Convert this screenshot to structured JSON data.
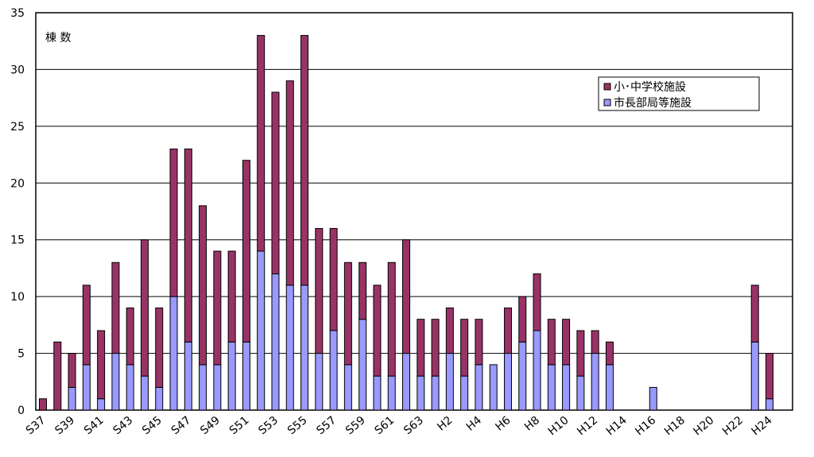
{
  "chart_data": {
    "type": "stacked-bar",
    "y_label": "棟 数",
    "categories": [
      "S37",
      null,
      "S39",
      null,
      "S41",
      null,
      "S43",
      null,
      "S45",
      null,
      "S47",
      null,
      "S49",
      null,
      "S51",
      null,
      "S53",
      null,
      "S55",
      null,
      "S57",
      null,
      "S59",
      null,
      "S61",
      null,
      "S63",
      null,
      "H2",
      null,
      "H4",
      null,
      "H6",
      null,
      "H8",
      null,
      "H10",
      null,
      "H12",
      null,
      "H14",
      null,
      "H16",
      null,
      "H18",
      null,
      "H20",
      null,
      "H22",
      null,
      "H24"
    ],
    "series": [
      {
        "name": "小･中学校施設",
        "color": "#993366",
        "values": [
          1,
          6,
          3,
          7,
          6,
          8,
          5,
          12,
          7,
          13,
          17,
          14,
          10,
          8,
          16,
          19,
          16,
          18,
          22,
          11,
          9,
          9,
          5,
          8,
          10,
          10,
          5,
          5,
          4,
          5,
          4,
          0,
          4,
          4,
          5,
          4,
          4,
          4,
          2,
          2,
          0,
          0,
          0,
          0,
          0,
          0,
          0,
          0,
          0,
          5,
          4
        ]
      },
      {
        "name": "市長部局等施設",
        "color": "#9999ff",
        "values": [
          0,
          0,
          2,
          4,
          1,
          5,
          4,
          3,
          2,
          10,
          6,
          4,
          4,
          6,
          6,
          14,
          12,
          11,
          11,
          5,
          7,
          4,
          8,
          3,
          3,
          5,
          3,
          3,
          5,
          3,
          4,
          4,
          5,
          6,
          7,
          4,
          4,
          3,
          5,
          4,
          0,
          0,
          2,
          0,
          0,
          0,
          0,
          0,
          0,
          6,
          1
        ]
      }
    ],
    "ylim": [
      0,
      35
    ],
    "yticks": [
      0,
      5,
      10,
      15,
      20,
      25,
      30,
      35
    ],
    "grid": true
  }
}
